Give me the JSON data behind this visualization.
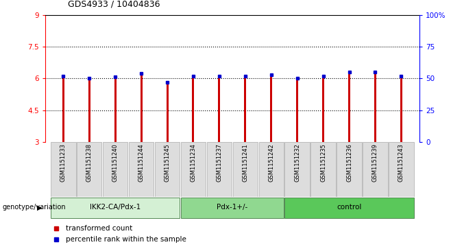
{
  "title": "GDS4933 / 10404836",
  "samples": [
    "GSM1151233",
    "GSM1151238",
    "GSM1151240",
    "GSM1151244",
    "GSM1151245",
    "GSM1151234",
    "GSM1151237",
    "GSM1151241",
    "GSM1151242",
    "GSM1151232",
    "GSM1151235",
    "GSM1151236",
    "GSM1151239",
    "GSM1151243"
  ],
  "red_values": [
    6.15,
    6.0,
    6.05,
    6.22,
    5.85,
    6.1,
    6.1,
    6.1,
    6.15,
    6.05,
    6.1,
    6.22,
    6.25,
    6.1
  ],
  "blue_values": [
    52,
    50,
    51,
    54,
    47,
    52,
    52,
    52,
    53,
    50,
    52,
    55,
    55,
    52
  ],
  "groups": [
    {
      "label": "IKK2-CA/Pdx-1",
      "start": 0,
      "end": 5,
      "color": "#d4f0d4"
    },
    {
      "label": "Pdx-1+/-",
      "start": 5,
      "end": 9,
      "color": "#90d890"
    },
    {
      "label": "control",
      "start": 9,
      "end": 14,
      "color": "#5ac85a"
    }
  ],
  "ylim_left": [
    3,
    9
  ],
  "ylim_right": [
    0,
    100
  ],
  "yticks_left": [
    3,
    4.5,
    6,
    7.5,
    9
  ],
  "yticks_right": [
    0,
    25,
    50,
    75,
    100
  ],
  "ytick_labels_left": [
    "3",
    "4.5",
    "6",
    "7.5",
    "9"
  ],
  "ytick_labels_right": [
    "0",
    "25",
    "50",
    "75",
    "100%"
  ],
  "hlines": [
    4.5,
    6.0,
    7.5
  ],
  "bar_color": "#cc0000",
  "marker_color": "#0000cc",
  "background_color": "#ffffff",
  "genotype_label": "genotype/variation",
  "legend_red": "transformed count",
  "legend_blue": "percentile rank within the sample",
  "bar_width": 0.08,
  "ybase": 3
}
